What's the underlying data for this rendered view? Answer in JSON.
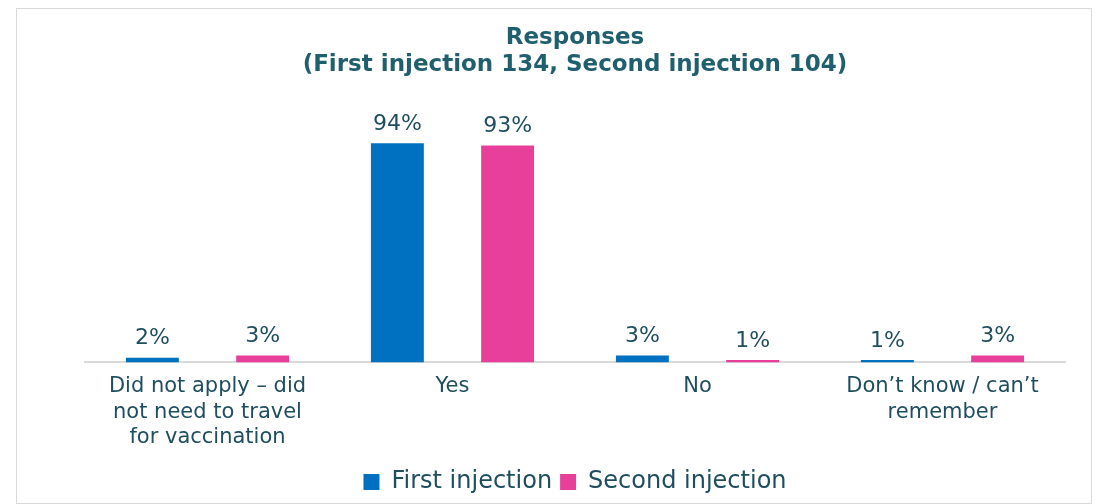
{
  "chart_data": {
    "type": "bar",
    "title": "Responses\n(First injection 134, Second injection 104)",
    "categories": [
      "Did not apply – did not need to travel for vaccination",
      "Yes",
      "No",
      "Don’t know / can’t remember"
    ],
    "series": [
      {
        "name": "First injection",
        "color": "#0070c0",
        "values": [
          2,
          94,
          3,
          1
        ],
        "value_labels": [
          "2%",
          "94%",
          "3%",
          "1%"
        ]
      },
      {
        "name": "Second injection",
        "color": "#e8409a",
        "values": [
          3,
          93,
          1,
          3
        ],
        "value_labels": [
          "3%",
          "93%",
          "1%",
          "3%"
        ]
      }
    ],
    "grid": false,
    "legend": "bottom"
  }
}
